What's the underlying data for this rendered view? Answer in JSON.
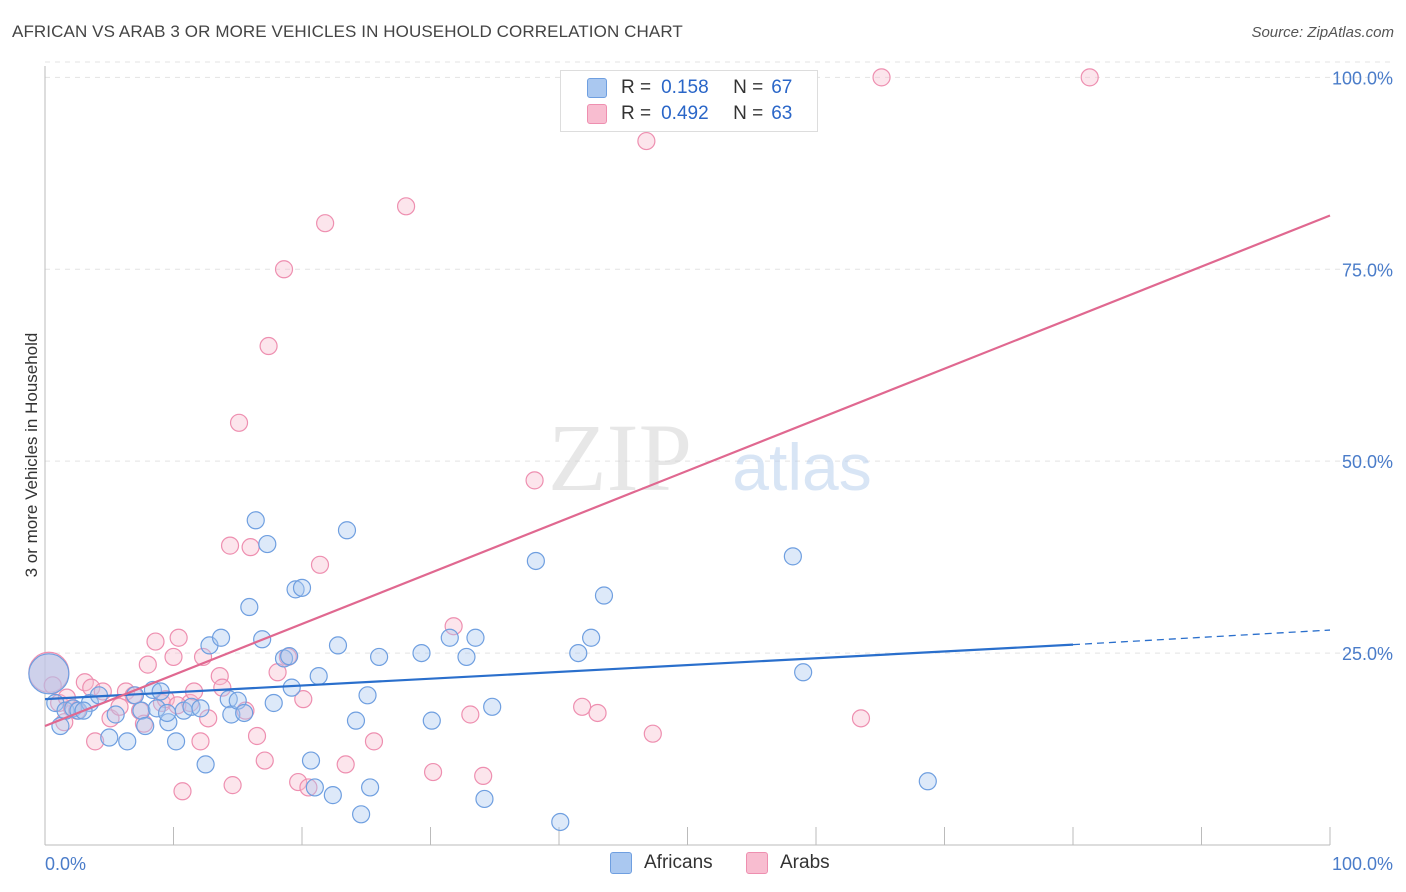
{
  "header": {
    "title": "AFRICAN VS ARAB 3 OR MORE VEHICLES IN HOUSEHOLD CORRELATION CHART",
    "source": "Source: ZipAtlas.com"
  },
  "legend": {
    "africans": {
      "r_label": "R =",
      "r_value": "0.158",
      "n_label": "N =",
      "n_value": "67"
    },
    "arabs": {
      "r_label": "R =",
      "r_value": "0.492",
      "n_label": "N =",
      "n_value": "63"
    }
  },
  "bottom_legend": {
    "africans": "Africans",
    "arabs": "Arabs"
  },
  "watermark": {
    "zip": "ZIP",
    "atlas": "atlas"
  },
  "colors": {
    "africans_fill": "#aac8f0",
    "africans_stroke": "#6f9fe0",
    "africans_line": "#2a6fcc",
    "arabs_fill": "#f8bdd0",
    "arabs_stroke": "#ee8fb0",
    "arabs_line": "#e06890"
  },
  "chart_data": {
    "type": "scatter",
    "title": "AFRICAN VS ARAB 3 OR MORE VEHICLES IN HOUSEHOLD CORRELATION CHART",
    "xlabel": "",
    "ylabel": "3 or more Vehicles in Household",
    "xlim": [
      0,
      100
    ],
    "ylim": [
      0,
      102
    ],
    "x_tick_labels": [
      "0.0%",
      "100.0%"
    ],
    "y_tick_values": [
      25,
      50,
      75,
      100
    ],
    "y_tick_labels": [
      "25.0%",
      "50.0%",
      "75.0%",
      "100.0%"
    ],
    "series": [
      {
        "name": "Africans",
        "r": 0.158,
        "n": 67,
        "trend": {
          "x": [
            0,
            80
          ],
          "y": [
            19.0,
            26.1
          ],
          "dashed_to": [
            100,
            28.0
          ]
        },
        "points": [
          [
            0.3,
            22.3,
            "big"
          ],
          [
            0.8,
            18.5
          ],
          [
            1.2,
            15.5
          ],
          [
            1.6,
            17.5
          ],
          [
            2.2,
            17.8
          ],
          [
            2.6,
            17.5
          ],
          [
            3.5,
            18.5
          ],
          [
            4.2,
            19.5
          ],
          [
            5,
            14
          ],
          [
            5.5,
            17
          ],
          [
            6.4,
            13.5
          ],
          [
            7,
            19.5
          ],
          [
            7.5,
            17.5
          ],
          [
            7.8,
            15.5
          ],
          [
            8.4,
            20.2
          ],
          [
            8.7,
            17.8
          ],
          [
            9,
            20
          ],
          [
            9.6,
            16
          ],
          [
            10.2,
            13.5
          ],
          [
            10.8,
            17.5
          ],
          [
            11.4,
            18
          ],
          [
            12.1,
            17.8
          ],
          [
            12.5,
            10.5
          ],
          [
            12.8,
            26
          ],
          [
            13.7,
            27
          ],
          [
            14.3,
            19
          ],
          [
            14.5,
            17
          ],
          [
            15,
            18.8
          ],
          [
            15.5,
            17.2
          ],
          [
            15.9,
            31
          ],
          [
            16.4,
            42.3
          ],
          [
            16.9,
            26.8
          ],
          [
            17.3,
            39.2
          ],
          [
            17.8,
            18.5
          ],
          [
            18.6,
            24.3
          ],
          [
            19.2,
            20.5
          ],
          [
            19.5,
            33.3
          ],
          [
            20,
            33.5
          ],
          [
            20.7,
            11
          ],
          [
            21,
            7.5
          ],
          [
            21.3,
            22
          ],
          [
            22.4,
            6.5
          ],
          [
            22.8,
            26
          ],
          [
            23.5,
            41
          ],
          [
            24.2,
            16.2
          ],
          [
            24.6,
            4
          ],
          [
            25.1,
            19.5
          ],
          [
            25.3,
            7.5
          ],
          [
            26,
            24.5
          ],
          [
            29.3,
            25
          ],
          [
            30.1,
            16.2
          ],
          [
            31.5,
            27
          ],
          [
            32.8,
            24.5
          ],
          [
            33.5,
            27
          ],
          [
            34.2,
            6
          ],
          [
            34.8,
            18
          ],
          [
            38.2,
            37
          ],
          [
            40.1,
            3
          ],
          [
            41.5,
            25
          ],
          [
            42.5,
            27
          ],
          [
            43.5,
            32.5
          ],
          [
            58.2,
            37.6
          ],
          [
            59,
            22.5
          ],
          [
            68.7,
            8.3
          ],
          [
            19,
            24.6
          ],
          [
            3,
            17.5
          ],
          [
            9.5,
            17.2
          ]
        ]
      },
      {
        "name": "Arabs",
        "r": 0.492,
        "n": 63,
        "trend": {
          "x": [
            0,
            100
          ],
          "y": [
            15.5,
            82.0
          ]
        },
        "points": [
          [
            0.3,
            22.5,
            "big"
          ],
          [
            0.6,
            20.8
          ],
          [
            1.1,
            18.5
          ],
          [
            1.7,
            19.2
          ],
          [
            2.1,
            17.8
          ],
          [
            2.5,
            17.5
          ],
          [
            3.1,
            21.2
          ],
          [
            3.6,
            20.5
          ],
          [
            3.9,
            13.5
          ],
          [
            4.5,
            20
          ],
          [
            5.1,
            16.5
          ],
          [
            5.8,
            18
          ],
          [
            6.3,
            20
          ],
          [
            6.9,
            19.5
          ],
          [
            7.4,
            17.5
          ],
          [
            8,
            23.5
          ],
          [
            8.6,
            26.5
          ],
          [
            9.1,
            18.5
          ],
          [
            9.4,
            19
          ],
          [
            10,
            24.5
          ],
          [
            10.4,
            27
          ],
          [
            10.7,
            7
          ],
          [
            11.3,
            18.5
          ],
          [
            11.6,
            20
          ],
          [
            12.1,
            13.5
          ],
          [
            12.3,
            24.5
          ],
          [
            12.7,
            16.5
          ],
          [
            13.6,
            22
          ],
          [
            13.8,
            20.5
          ],
          [
            14.4,
            39
          ],
          [
            14.6,
            7.8
          ],
          [
            15.1,
            55
          ],
          [
            15.6,
            17.5
          ],
          [
            16,
            38.8
          ],
          [
            16.5,
            14.2
          ],
          [
            17.1,
            11
          ],
          [
            17.4,
            65
          ],
          [
            18.1,
            22.5
          ],
          [
            18.6,
            75
          ],
          [
            18.9,
            24.5
          ],
          [
            19.7,
            8.2
          ],
          [
            20.1,
            19
          ],
          [
            20.5,
            7.5
          ],
          [
            21.4,
            36.5
          ],
          [
            21.8,
            81
          ],
          [
            23.4,
            10.5
          ],
          [
            25.6,
            13.5
          ],
          [
            28.1,
            83.2
          ],
          [
            30.2,
            9.5
          ],
          [
            31.8,
            28.5
          ],
          [
            33.1,
            17
          ],
          [
            34.1,
            9
          ],
          [
            38.1,
            47.5
          ],
          [
            41.8,
            18
          ],
          [
            43,
            17.2
          ],
          [
            46.8,
            91.7
          ],
          [
            47.3,
            14.5
          ],
          [
            63.5,
            16.5
          ],
          [
            81.3,
            100
          ],
          [
            65.1,
            100
          ],
          [
            10.3,
            18.2
          ],
          [
            7.7,
            15.8
          ],
          [
            1.5,
            16
          ]
        ]
      }
    ]
  }
}
